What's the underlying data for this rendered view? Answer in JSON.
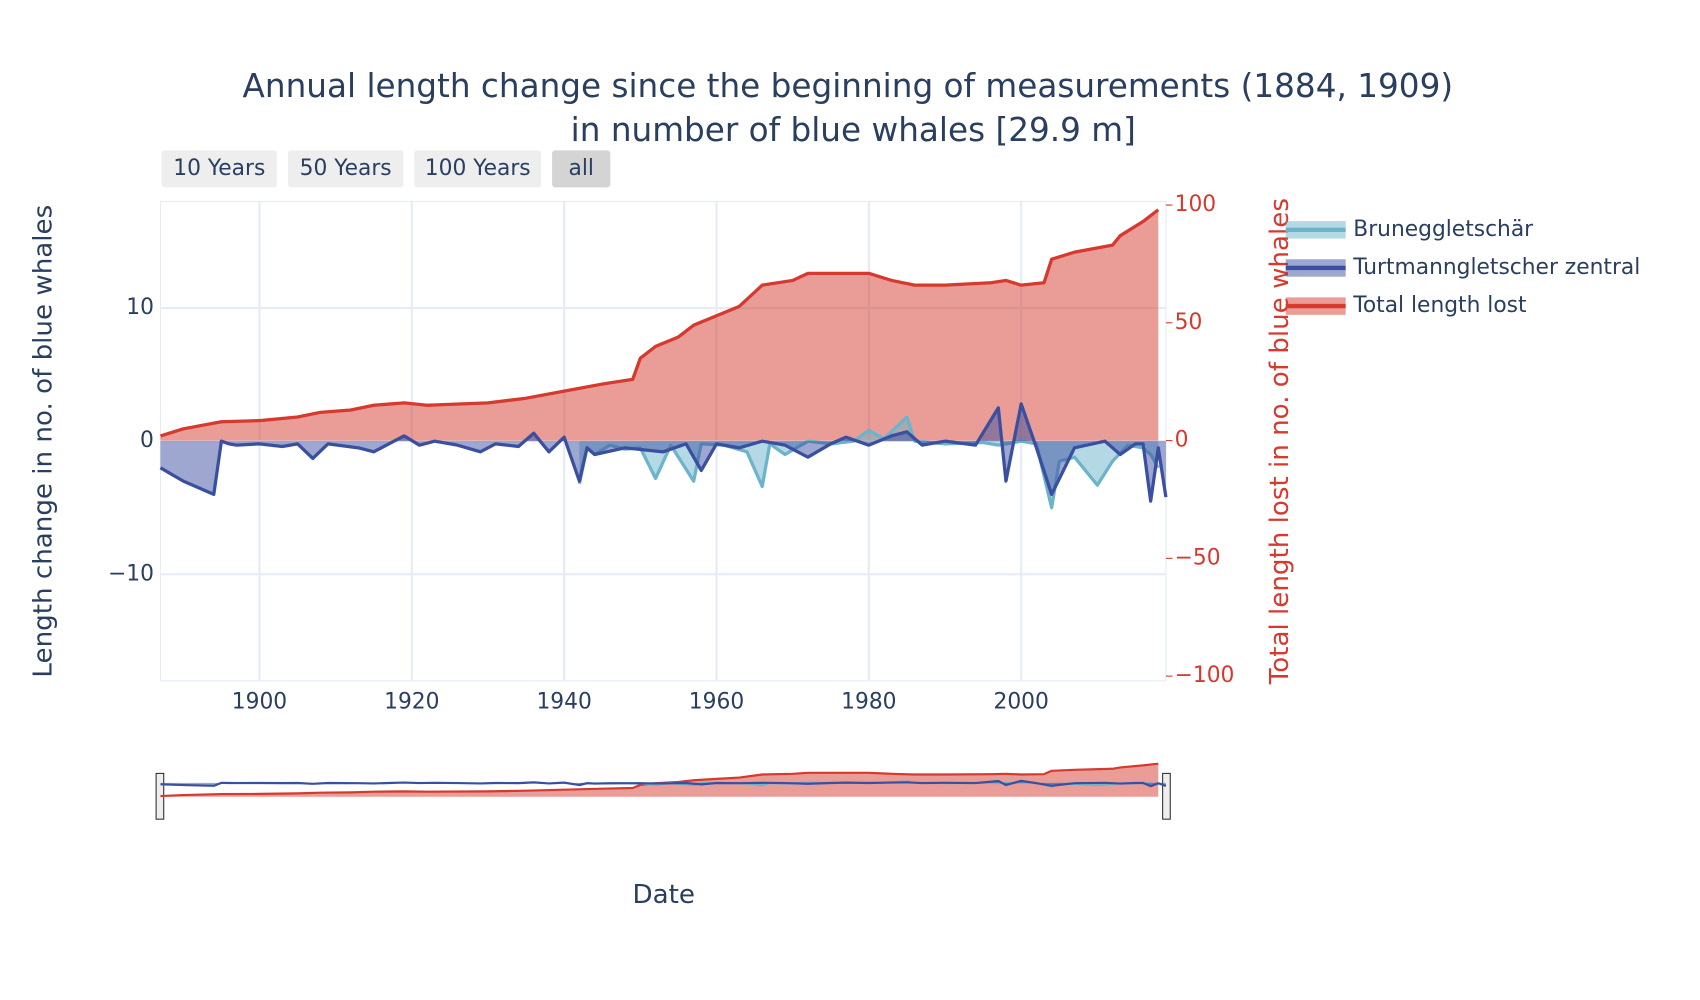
{
  "chart_data": {
    "type": "area",
    "title": [
      "Annual length change since the beginning of measurements (1884, 1909)",
      "in number of blue whales [29.9 m]"
    ],
    "buttons": [
      "10 Years",
      "50 Years",
      "100 Years",
      "all"
    ],
    "x_label": "Date",
    "y_label": "Length change in no. of blue whales",
    "y2_label": "Total length lost in no. of blue whales",
    "xlim": [
      1887,
      2019
    ],
    "xticks": [
      1900,
      1920,
      1940,
      1960,
      1980,
      2000
    ],
    "ylim": [
      -18,
      18
    ],
    "yticks": [
      {
        "value": -10,
        "label": "−10"
      },
      0,
      10
    ],
    "y2lim": [
      -102,
      101.5
    ],
    "y2ticks": [
      {
        "value": -100,
        "label": "−100"
      },
      {
        "value": -50,
        "label": "−50"
      },
      0,
      50,
      100
    ],
    "grid": true,
    "legend": "right",
    "series": [
      {
        "name": "Bruneggletschär",
        "color": "#6cb4c9",
        "x": [
          1942,
          1943,
          1944,
          1946,
          1948,
          1950,
          1952,
          1954,
          1955,
          1957,
          1958,
          1961,
          1964,
          1966,
          1967,
          1969,
          1972,
          1975,
          1978,
          1980,
          1982,
          1985,
          1986,
          1990,
          1995,
          1997,
          2000,
          2002,
          2004,
          2005,
          2007,
          2010,
          2012,
          2014,
          2016,
          2017,
          2018
        ],
        "values": [
          -3.2,
          -0.5,
          -1,
          -0.3,
          -0.6,
          -0.5,
          -2.8,
          -0.3,
          -1.2,
          -3,
          -0.2,
          -0.3,
          -0.8,
          -3.4,
          -0.2,
          -1,
          0,
          -0.2,
          0,
          0.8,
          0.2,
          1.8,
          0,
          -0.2,
          -0.1,
          -0.3,
          0,
          -0.2,
          -5,
          -1.5,
          -1.2,
          -3.3,
          -1.5,
          -0.3,
          -0.5,
          -1,
          -2
        ]
      },
      {
        "name": "Turtmanngletscher zentral",
        "color": "#3b4fa0",
        "x": [
          1887,
          1890,
          1894,
          1895,
          1896,
          1897,
          1900,
          1903,
          1905,
          1907,
          1909,
          1913,
          1915,
          1917,
          1919,
          1921,
          1923,
          1926,
          1929,
          1931,
          1934,
          1936,
          1938,
          1940,
          1942,
          1943,
          1944,
          1948,
          1953,
          1956,
          1958,
          1960,
          1963,
          1966,
          1969,
          1972,
          1975,
          1977,
          1980,
          1983,
          1985,
          1987,
          1990,
          1994,
          1997,
          1998,
          2000,
          2002,
          2004,
          2007,
          2011,
          2013,
          2015,
          2016,
          2017,
          2018,
          2019
        ],
        "values": [
          -2,
          -3,
          -4,
          0,
          -0.2,
          -0.3,
          -0.2,
          -0.4,
          -0.2,
          -1.3,
          -0.2,
          -0.5,
          -0.8,
          -0.2,
          0.4,
          -0.3,
          0,
          -0.3,
          -0.8,
          -0.2,
          -0.4,
          0.6,
          -0.8,
          0.3,
          -3,
          -0.5,
          -1,
          -0.5,
          -0.8,
          -0.2,
          -2.2,
          -0.2,
          -0.5,
          0,
          -0.3,
          -1.2,
          -0.2,
          0.3,
          -0.3,
          0.4,
          0.7,
          -0.3,
          0,
          -0.3,
          2.5,
          -3,
          2.8,
          -0.5,
          -4,
          -0.5,
          0,
          -1,
          -0.2,
          -0.2,
          -4.5,
          -0.5,
          -4.2
        ]
      },
      {
        "name": "Total length lost",
        "color": "#d6392e",
        "axis": "y2",
        "x": [
          1887,
          1890,
          1895,
          1900,
          1905,
          1908,
          1912,
          1915,
          1919,
          1922,
          1930,
          1935,
          1940,
          1945,
          1949,
          1950,
          1952,
          1955,
          1957,
          1960,
          1963,
          1966,
          1970,
          1972,
          1975,
          1980,
          1983,
          1986,
          1990,
          1996,
          1998,
          2000,
          2003,
          2004,
          2007,
          2012,
          2013,
          2016,
          2018
        ],
        "values": [
          2,
          5,
          8,
          8.5,
          10,
          12,
          13,
          15,
          16,
          15,
          16,
          18,
          21,
          24,
          26,
          35,
          40,
          44,
          49,
          53,
          57,
          66,
          68,
          71,
          71,
          71,
          68,
          66,
          66,
          67,
          68,
          66,
          67,
          77,
          80,
          83,
          87,
          93,
          98
        ]
      }
    ]
  }
}
